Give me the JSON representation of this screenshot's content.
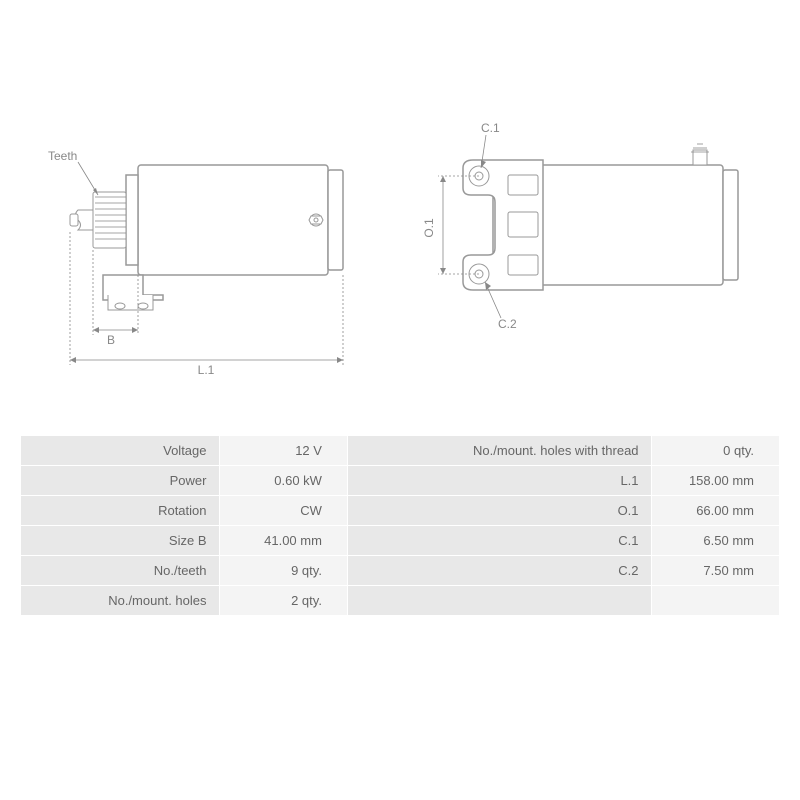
{
  "diagram_left": {
    "labels": {
      "teeth": "Teeth",
      "B": "B",
      "L1": "L.1"
    }
  },
  "diagram_right": {
    "labels": {
      "C1": "C.1",
      "C2": "C.2",
      "O1": "O.1"
    }
  },
  "table": {
    "rows": [
      {
        "l1": "Voltage",
        "v1": "12 V",
        "l2": "No./mount. holes with thread",
        "v2": "0 qty."
      },
      {
        "l1": "Power",
        "v1": "0.60 kW",
        "l2": "L.1",
        "v2": "158.00 mm"
      },
      {
        "l1": "Rotation",
        "v1": "CW",
        "l2": "O.1",
        "v2": "66.00 mm"
      },
      {
        "l1": "Size B",
        "v1": "41.00 mm",
        "l2": "C.1",
        "v2": "6.50 mm"
      },
      {
        "l1": "No./teeth",
        "v1": "9 qty.",
        "l2": "C.2",
        "v2": "7.50 mm"
      },
      {
        "l1": "No./mount. holes",
        "v1": "2 qty.",
        "l2": "",
        "v2": ""
      }
    ]
  },
  "styling": {
    "stroke_color": "#999",
    "label_color": "#888",
    "table_label_bg": "#e8e8e8",
    "table_value_bg": "#f4f4f4",
    "table_border": "#ffffff",
    "font_size_label": 12,
    "font_size_table": 13
  }
}
